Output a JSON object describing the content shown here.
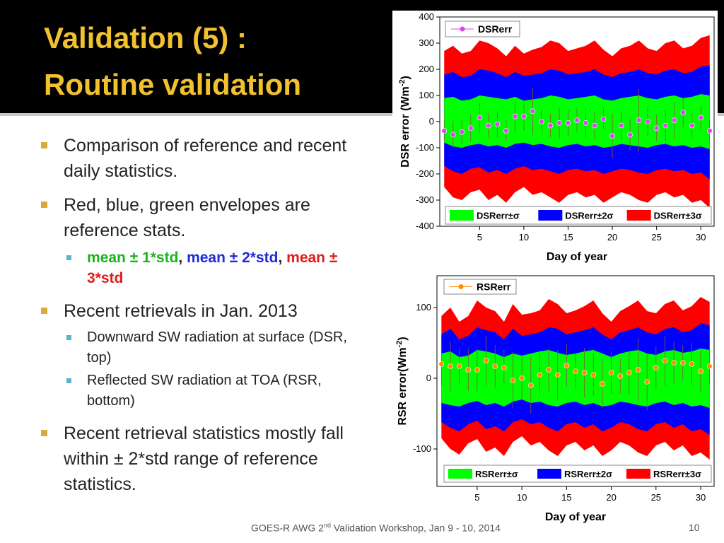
{
  "slide": {
    "title": [
      "Validation (5) :",
      "Routine validation"
    ],
    "bullets": [
      {
        "text": "Comparison of reference and recent daily statistics."
      },
      {
        "text": "Red, blue, green envelopes are reference stats.",
        "sub": [
          {
            "parts": [
              "mean ± 1*std",
              ", ",
              "mean ± 2*std",
              ", ",
              "mean ± 3*std"
            ]
          }
        ]
      },
      {
        "text": "Recent retrievals in Jan. 2013",
        "sub": [
          {
            "parts": [
              "Downward SW radiation at surface (DSR, top)"
            ]
          },
          {
            "parts": [
              "Reflected SW radiation at TOA (RSR, bottom)"
            ]
          }
        ]
      },
      {
        "text": "Recent retrieval statistics mostly fall within ± 2*std range of reference statistics."
      }
    ],
    "footer": [
      "GOES-R AWG 2",
      "nd",
      " Validation Workshop, Jan 9 - 10, 2014"
    ],
    "page": "10"
  },
  "chart_data": [
    {
      "type": "band",
      "x_label": "Day of year",
      "y_label": [
        "DSR error (Wm",
        "-2",
        ")"
      ],
      "x": [
        1,
        2,
        3,
        4,
        5,
        6,
        7,
        8,
        9,
        10,
        11,
        12,
        13,
        14,
        15,
        16,
        17,
        18,
        19,
        20,
        21,
        22,
        23,
        24,
        25,
        26,
        27,
        28,
        29,
        30,
        31
      ],
      "xlim": [
        0.5,
        31.5
      ],
      "xticks": [
        5,
        10,
        15,
        20,
        25,
        30
      ],
      "ylim": [
        -400,
        400
      ],
      "yticks": [
        -400,
        -300,
        -200,
        -100,
        0,
        100,
        200,
        300,
        400
      ],
      "series": [
        {
          "name": "DSRerr±σ",
          "color": "#00ff00",
          "upper": [
            90,
            95,
            80,
            85,
            100,
            95,
            90,
            85,
            95,
            80,
            85,
            90,
            100,
            95,
            85,
            90,
            95,
            100,
            85,
            80,
            90,
            95,
            100,
            90,
            85,
            95,
            100,
            90,
            95,
            105,
            100
          ],
          "lower": [
            -80,
            -95,
            -100,
            -90,
            -85,
            -95,
            -90,
            -100,
            -85,
            -80,
            -90,
            -85,
            -95,
            -100,
            -90,
            -85,
            -95,
            -90,
            -100,
            -95,
            -85,
            -90,
            -95,
            -100,
            -90,
            -85,
            -95,
            -90,
            -100,
            -95,
            -105
          ]
        },
        {
          "name": "DSRerr±2σ",
          "color": "#0000ff",
          "upper": [
            180,
            190,
            170,
            175,
            200,
            195,
            185,
            170,
            190,
            175,
            180,
            185,
            200,
            195,
            180,
            185,
            190,
            200,
            180,
            170,
            185,
            190,
            200,
            185,
            180,
            195,
            200,
            185,
            190,
            210,
            215
          ],
          "lower": [
            -170,
            -190,
            -200,
            -180,
            -175,
            -195,
            -185,
            -200,
            -180,
            -170,
            -185,
            -180,
            -190,
            -200,
            -185,
            -180,
            -190,
            -185,
            -200,
            -190,
            -180,
            -185,
            -195,
            -200,
            -185,
            -180,
            -190,
            -185,
            -200,
            -195,
            -220
          ]
        },
        {
          "name": "DSRerr±3σ",
          "color": "#ff0000",
          "upper": [
            270,
            290,
            260,
            270,
            310,
            300,
            280,
            250,
            290,
            260,
            275,
            285,
            310,
            300,
            270,
            280,
            290,
            310,
            275,
            250,
            280,
            290,
            310,
            280,
            270,
            300,
            310,
            280,
            290,
            320,
            330
          ],
          "lower": [
            -250,
            -290,
            -300,
            -270,
            -260,
            -300,
            -280,
            -310,
            -270,
            -250,
            -280,
            -270,
            -290,
            -310,
            -280,
            -270,
            -290,
            -280,
            -310,
            -290,
            -270,
            -280,
            -300,
            -310,
            -280,
            -270,
            -290,
            -280,
            -310,
            -300,
            -330
          ]
        }
      ],
      "points": {
        "name": "DSRerr",
        "color": "#d946ef",
        "values": [
          -35,
          -50,
          -40,
          -25,
          15,
          -15,
          -10,
          -35,
          20,
          20,
          40,
          0,
          -15,
          -5,
          -5,
          5,
          -5,
          -15,
          10,
          -55,
          -15,
          -50,
          5,
          0,
          -25,
          -15,
          5,
          35,
          -15,
          15,
          -35
        ],
        "errors": [
          40,
          50,
          45,
          50,
          55,
          45,
          50,
          40,
          60,
          55,
          90,
          50,
          45,
          60,
          50,
          45,
          55,
          50,
          40,
          85,
          55,
          60,
          120,
          55,
          50,
          60,
          70,
          55,
          50,
          45,
          40
        ]
      }
    },
    {
      "type": "band",
      "x_label": "Day of year",
      "y_label": [
        "RSR error(Wm",
        "-2",
        ")"
      ],
      "x": [
        1,
        2,
        3,
        4,
        5,
        6,
        7,
        8,
        9,
        10,
        11,
        12,
        13,
        14,
        15,
        16,
        17,
        18,
        19,
        20,
        21,
        22,
        23,
        24,
        25,
        26,
        27,
        28,
        29,
        30,
        31
      ],
      "xlim": [
        0.5,
        31.5
      ],
      "xticks": [
        5,
        10,
        15,
        20,
        25,
        30
      ],
      "ylim": [
        -153,
        145
      ],
      "yticks": [
        -100,
        0,
        100
      ],
      "series": [
        {
          "name": "RSRerr±σ",
          "color": "#00ff00",
          "upper": [
            35,
            38,
            30,
            32,
            40,
            38,
            35,
            30,
            35,
            32,
            35,
            38,
            40,
            36,
            33,
            35,
            38,
            40,
            35,
            30,
            35,
            38,
            40,
            35,
            33,
            38,
            40,
            36,
            38,
            42,
            40
          ],
          "lower": [
            -35,
            -38,
            -40,
            -35,
            -32,
            -38,
            -35,
            -40,
            -33,
            -30,
            -35,
            -33,
            -38,
            -40,
            -35,
            -33,
            -38,
            -35,
            -40,
            -38,
            -33,
            -35,
            -38,
            -40,
            -35,
            -33,
            -38,
            -35,
            -40,
            -38,
            -42
          ]
        },
        {
          "name": "RSRerr±2σ",
          "color": "#0000ff",
          "upper": [
            62,
            70,
            55,
            60,
            72,
            68,
            65,
            55,
            70,
            60,
            62,
            65,
            72,
            70,
            62,
            65,
            68,
            72,
            62,
            55,
            65,
            68,
            72,
            65,
            62,
            70,
            72,
            65,
            68,
            78,
            75
          ],
          "lower": [
            -62,
            -70,
            -75,
            -65,
            -60,
            -72,
            -68,
            -75,
            -62,
            -58,
            -65,
            -62,
            -70,
            -75,
            -65,
            -62,
            -70,
            -65,
            -75,
            -70,
            -62,
            -65,
            -72,
            -75,
            -65,
            -62,
            -70,
            -65,
            -75,
            -72,
            -80
          ]
        },
        {
          "name": "RSRerr±3σ",
          "color": "#ff0000",
          "upper": [
            88,
            100,
            80,
            88,
            110,
            100,
            95,
            80,
            105,
            90,
            92,
            96,
            112,
            105,
            92,
            96,
            102,
            110,
            92,
            80,
            95,
            102,
            110,
            95,
            92,
            105,
            110,
            96,
            102,
            115,
            108
          ],
          "lower": [
            -85,
            -100,
            -108,
            -92,
            -86,
            -104,
            -98,
            -110,
            -90,
            -82,
            -95,
            -90,
            -102,
            -110,
            -95,
            -90,
            -102,
            -95,
            -110,
            -102,
            -90,
            -95,
            -105,
            -110,
            -95,
            -90,
            -102,
            -95,
            -110,
            -105,
            -115
          ]
        }
      ],
      "points": {
        "name": "RSRerr",
        "color": "#ff8c00",
        "values": [
          20,
          17,
          17,
          12,
          12,
          25,
          17,
          15,
          -3,
          0,
          -10,
          5,
          12,
          5,
          18,
          10,
          8,
          5,
          -8,
          8,
          3,
          8,
          12,
          -5,
          15,
          25,
          22,
          22,
          20,
          10,
          17
        ],
        "errors": [
          30,
          35,
          25,
          30,
          30,
          35,
          30,
          25,
          40,
          30,
          40,
          30,
          30,
          35,
          30,
          25,
          35,
          30,
          35,
          30,
          25,
          30,
          45,
          40,
          30,
          35,
          30,
          25,
          30,
          30,
          25
        ]
      }
    }
  ]
}
